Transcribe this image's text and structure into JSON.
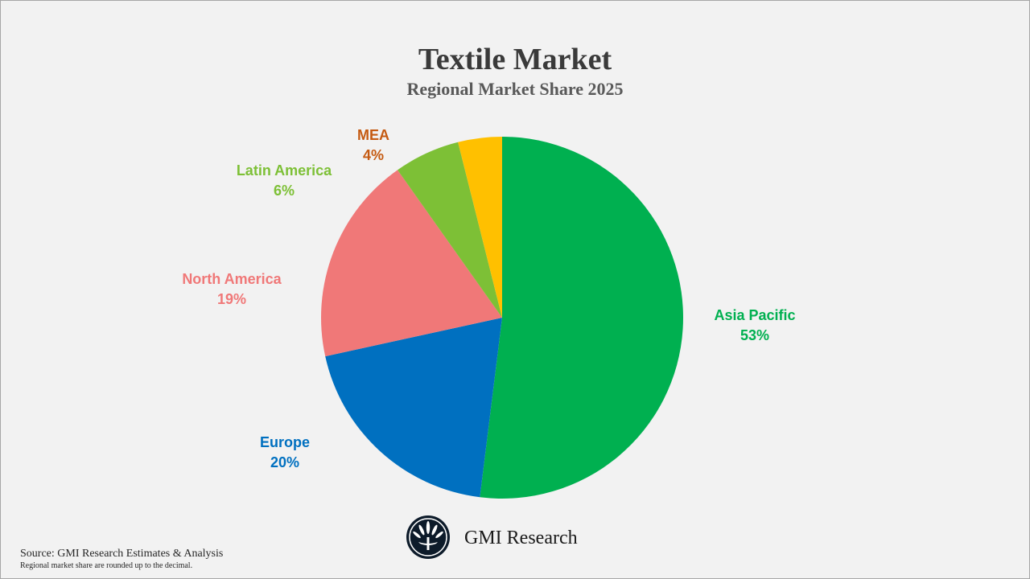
{
  "chart_data": {
    "type": "pie",
    "title": "Textile Market",
    "subtitle": "Regional Market Share 2025",
    "start_angle": "12 o'clock, clockwise",
    "slices": [
      {
        "label": "Asia Pacific",
        "value": 53,
        "display": "53%",
        "color": "#00B050",
        "label_color": "#00B050"
      },
      {
        "label": "Europe",
        "value": 20,
        "display": "20%",
        "color": "#0070C0",
        "label_color": "#0070C0"
      },
      {
        "label": "North America",
        "value": 19,
        "display": "19%",
        "color": "#F07878",
        "label_color": "#F07878"
      },
      {
        "label": "Latin America",
        "value": 6,
        "display": "6%",
        "color": "#7DC036",
        "label_color": "#7DC036"
      },
      {
        "label": "MEA",
        "value": 4,
        "display": "4%",
        "color": "#FFC000",
        "label_color": "#C55A11"
      }
    ]
  },
  "footer": {
    "source": "Source: GMI Research Estimates & Analysis",
    "note": "Regional market share are rounded up to the decimal.",
    "brand": "GMI Research"
  }
}
